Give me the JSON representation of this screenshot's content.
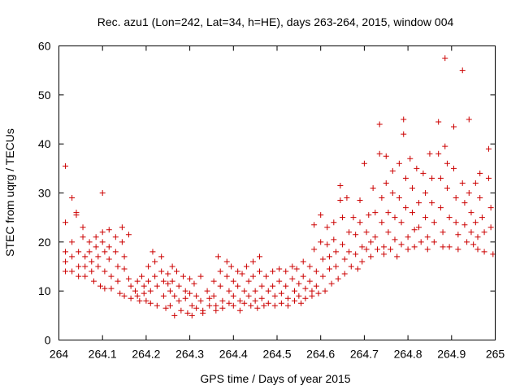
{
  "chart_data": {
    "type": "scatter",
    "title": "Rec. azu1 (Lon=242, Lat=34, h=HE), days 263-264, 2015, window 004",
    "xlabel": "GPS time / Days of year 2015",
    "ylabel": "STEC from uqrg / TECUs",
    "xlim": [
      264,
      265
    ],
    "ylim": [
      0,
      60
    ],
    "xticks": [
      "264",
      "264.1",
      "264.2",
      "264.3",
      "264.4",
      "264.5",
      "264.6",
      "264.7",
      "264.8",
      "264.9",
      "265"
    ],
    "yticks": [
      "0",
      "10",
      "20",
      "30",
      "40",
      "50",
      "60"
    ],
    "grid": false,
    "marker": "+",
    "color": "#cc0000",
    "series": [
      {
        "points": [
          [
            264.015,
            35.5
          ],
          [
            264.015,
            24
          ],
          [
            264.015,
            18
          ],
          [
            264.015,
            16
          ],
          [
            264.015,
            14
          ],
          [
            264.03,
            29
          ],
          [
            264.03,
            20
          ],
          [
            264.03,
            17
          ],
          [
            264.03,
            14
          ],
          [
            264.04,
            26
          ],
          [
            264.04,
            25.5
          ],
          [
            264.045,
            18
          ],
          [
            264.045,
            15
          ],
          [
            264.045,
            13
          ],
          [
            264.055,
            23
          ],
          [
            264.055,
            21
          ],
          [
            264.06,
            17
          ],
          [
            264.06,
            15
          ],
          [
            264.06,
            13
          ],
          [
            264.07,
            20
          ],
          [
            264.07,
            18
          ],
          [
            264.075,
            16
          ],
          [
            264.075,
            14
          ],
          [
            264.08,
            12
          ],
          [
            264.085,
            21
          ],
          [
            264.085,
            19
          ],
          [
            264.09,
            17
          ],
          [
            264.09,
            15
          ],
          [
            264.095,
            11
          ],
          [
            264.1,
            30
          ],
          [
            264.1,
            22
          ],
          [
            264.1,
            20
          ],
          [
            264.105,
            18
          ],
          [
            264.105,
            14
          ],
          [
            264.105,
            10.5
          ],
          [
            264.115,
            22.5
          ],
          [
            264.115,
            19
          ],
          [
            264.115,
            16.5
          ],
          [
            264.12,
            13
          ],
          [
            264.12,
            10.5
          ],
          [
            264.13,
            21
          ],
          [
            264.13,
            18
          ],
          [
            264.135,
            15
          ],
          [
            264.135,
            12
          ],
          [
            264.14,
            9.5
          ],
          [
            264.145,
            23
          ],
          [
            264.145,
            20
          ],
          [
            264.15,
            17
          ],
          [
            264.15,
            14.5
          ],
          [
            264.15,
            9
          ],
          [
            264.16,
            21.5
          ],
          [
            264.16,
            12.5
          ],
          [
            264.165,
            11
          ],
          [
            264.165,
            8.5
          ],
          [
            264.175,
            10
          ],
          [
            264.18,
            12
          ],
          [
            264.18,
            9
          ],
          [
            264.185,
            8
          ],
          [
            264.19,
            13
          ],
          [
            264.195,
            11
          ],
          [
            264.195,
            9.5
          ],
          [
            264.2,
            8
          ],
          [
            264.205,
            15
          ],
          [
            264.205,
            12
          ],
          [
            264.21,
            10
          ],
          [
            264.21,
            7.5
          ],
          [
            264.215,
            18
          ],
          [
            264.22,
            16
          ],
          [
            264.22,
            13
          ],
          [
            264.225,
            11
          ],
          [
            264.225,
            7
          ],
          [
            264.235,
            17
          ],
          [
            264.235,
            14
          ],
          [
            264.24,
            12
          ],
          [
            264.24,
            9
          ],
          [
            264.245,
            6.5
          ],
          [
            264.25,
            13.5
          ],
          [
            264.25,
            11.5
          ],
          [
            264.255,
            10
          ],
          [
            264.255,
            7
          ],
          [
            264.26,
            15
          ],
          [
            264.26,
            12
          ],
          [
            264.265,
            9
          ],
          [
            264.265,
            5
          ],
          [
            264.27,
            14
          ],
          [
            264.275,
            11
          ],
          [
            264.275,
            8
          ],
          [
            264.28,
            6
          ],
          [
            264.285,
            13
          ],
          [
            264.29,
            10
          ],
          [
            264.29,
            8.5
          ],
          [
            264.295,
            5.5
          ],
          [
            264.3,
            12.5
          ],
          [
            264.3,
            9.5
          ],
          [
            264.305,
            7
          ],
          [
            264.305,
            5
          ],
          [
            264.31,
            11.5
          ],
          [
            264.315,
            9
          ],
          [
            264.315,
            6.5
          ],
          [
            264.325,
            13
          ],
          [
            264.325,
            8
          ],
          [
            264.33,
            6
          ],
          [
            264.33,
            5.5
          ],
          [
            264.34,
            10
          ],
          [
            264.345,
            8.5
          ],
          [
            264.345,
            7
          ],
          [
            264.355,
            12
          ],
          [
            264.355,
            9
          ],
          [
            264.36,
            7
          ],
          [
            264.36,
            6
          ],
          [
            264.365,
            17
          ],
          [
            264.37,
            14
          ],
          [
            264.37,
            11
          ],
          [
            264.375,
            8
          ],
          [
            264.375,
            6.5
          ],
          [
            264.385,
            16
          ],
          [
            264.385,
            13
          ],
          [
            264.39,
            10
          ],
          [
            264.39,
            7.5
          ],
          [
            264.395,
            15
          ],
          [
            264.4,
            12
          ],
          [
            264.4,
            9
          ],
          [
            264.4,
            7
          ],
          [
            264.41,
            14
          ],
          [
            264.41,
            11
          ],
          [
            264.415,
            8
          ],
          [
            264.415,
            6
          ],
          [
            264.42,
            13.5
          ],
          [
            264.425,
            10
          ],
          [
            264.425,
            7.5
          ],
          [
            264.43,
            15
          ],
          [
            264.435,
            12
          ],
          [
            264.435,
            9
          ],
          [
            264.44,
            7
          ],
          [
            264.445,
            16
          ],
          [
            264.445,
            13
          ],
          [
            264.45,
            10
          ],
          [
            264.45,
            8
          ],
          [
            264.455,
            6.5
          ],
          [
            264.46,
            17
          ],
          [
            264.46,
            14
          ],
          [
            264.465,
            11
          ],
          [
            264.465,
            8.5
          ],
          [
            264.47,
            7
          ],
          [
            264.475,
            13
          ],
          [
            264.48,
            10
          ],
          [
            264.48,
            7.5
          ],
          [
            264.49,
            14
          ],
          [
            264.49,
            11
          ],
          [
            264.495,
            9
          ],
          [
            264.495,
            7
          ],
          [
            264.505,
            14.5
          ],
          [
            264.505,
            12
          ],
          [
            264.51,
            9.5
          ],
          [
            264.51,
            7.5
          ],
          [
            264.52,
            14
          ],
          [
            264.52,
            11
          ],
          [
            264.525,
            8.5
          ],
          [
            264.525,
            7
          ],
          [
            264.535,
            15
          ],
          [
            264.535,
            12.5
          ],
          [
            264.54,
            10
          ],
          [
            264.54,
            8
          ],
          [
            264.545,
            14.5
          ],
          [
            264.55,
            11.5
          ],
          [
            264.55,
            9
          ],
          [
            264.555,
            7.5
          ],
          [
            264.56,
            16
          ],
          [
            264.56,
            13
          ],
          [
            264.565,
            10.5
          ],
          [
            264.565,
            8.5
          ],
          [
            264.575,
            15
          ],
          [
            264.575,
            12
          ],
          [
            264.58,
            10
          ],
          [
            264.58,
            9
          ],
          [
            264.585,
            23.5
          ],
          [
            264.585,
            18.5
          ],
          [
            264.59,
            14
          ],
          [
            264.59,
            11
          ],
          [
            264.595,
            9.5
          ],
          [
            264.6,
            25.5
          ],
          [
            264.6,
            20
          ],
          [
            264.605,
            16.5
          ],
          [
            264.605,
            13
          ],
          [
            264.61,
            10
          ],
          [
            264.615,
            23
          ],
          [
            264.615,
            19.5
          ],
          [
            264.62,
            17
          ],
          [
            264.62,
            14.5
          ],
          [
            264.625,
            11.5
          ],
          [
            264.63,
            24
          ],
          [
            264.63,
            20.5
          ],
          [
            264.635,
            18
          ],
          [
            264.635,
            15
          ],
          [
            264.64,
            12.5
          ],
          [
            264.645,
            31.5
          ],
          [
            264.645,
            28.5
          ],
          [
            264.65,
            25
          ],
          [
            264.65,
            19.5
          ],
          [
            264.655,
            16.5
          ],
          [
            264.655,
            13.5
          ],
          [
            264.66,
            29
          ],
          [
            264.665,
            22
          ],
          [
            264.665,
            18
          ],
          [
            264.67,
            15
          ],
          [
            264.675,
            25
          ],
          [
            264.68,
            21.5
          ],
          [
            264.68,
            17.5
          ],
          [
            264.685,
            14.5
          ],
          [
            264.69,
            28.5
          ],
          [
            264.69,
            24
          ],
          [
            264.695,
            19
          ],
          [
            264.695,
            16
          ],
          [
            264.7,
            36
          ],
          [
            264.705,
            22
          ],
          [
            264.705,
            18.5
          ],
          [
            264.71,
            25.5
          ],
          [
            264.715,
            20
          ],
          [
            264.715,
            17
          ],
          [
            264.72,
            31
          ],
          [
            264.725,
            26
          ],
          [
            264.725,
            21
          ],
          [
            264.73,
            18.5
          ],
          [
            264.735,
            44
          ],
          [
            264.735,
            38
          ],
          [
            264.74,
            29
          ],
          [
            264.74,
            24
          ],
          [
            264.745,
            19
          ],
          [
            264.745,
            17.5
          ],
          [
            264.75,
            37.5
          ],
          [
            264.75,
            32
          ],
          [
            264.755,
            26
          ],
          [
            264.755,
            22
          ],
          [
            264.76,
            18.5
          ],
          [
            264.765,
            34.5
          ],
          [
            264.765,
            30
          ],
          [
            264.77,
            25
          ],
          [
            264.77,
            20.5
          ],
          [
            264.775,
            17
          ],
          [
            264.78,
            36
          ],
          [
            264.78,
            29
          ],
          [
            264.785,
            24
          ],
          [
            264.785,
            19.5
          ],
          [
            264.79,
            45
          ],
          [
            264.79,
            42
          ],
          [
            264.795,
            33
          ],
          [
            264.795,
            27
          ],
          [
            264.8,
            21
          ],
          [
            264.8,
            18.5
          ],
          [
            264.805,
            37
          ],
          [
            264.81,
            31
          ],
          [
            264.81,
            26
          ],
          [
            264.815,
            22.5
          ],
          [
            264.815,
            19
          ],
          [
            264.82,
            35
          ],
          [
            264.825,
            28
          ],
          [
            264.825,
            23
          ],
          [
            264.83,
            20
          ],
          [
            264.835,
            34
          ],
          [
            264.84,
            30
          ],
          [
            264.84,
            25
          ],
          [
            264.845,
            21
          ],
          [
            264.845,
            18.5
          ],
          [
            264.85,
            38
          ],
          [
            264.855,
            33
          ],
          [
            264.855,
            28
          ],
          [
            264.86,
            24
          ],
          [
            264.86,
            20
          ],
          [
            264.87,
            44.5
          ],
          [
            264.87,
            38
          ],
          [
            264.875,
            33
          ],
          [
            264.875,
            27
          ],
          [
            264.88,
            22
          ],
          [
            264.88,
            19
          ],
          [
            264.885,
            57.5
          ],
          [
            264.885,
            39.5
          ],
          [
            264.89,
            36
          ],
          [
            264.89,
            31
          ],
          [
            264.895,
            25
          ],
          [
            264.895,
            19
          ],
          [
            264.905,
            43.5
          ],
          [
            264.905,
            35
          ],
          [
            264.91,
            29
          ],
          [
            264.91,
            24
          ],
          [
            264.915,
            21.5
          ],
          [
            264.915,
            18.5
          ],
          [
            264.925,
            55
          ],
          [
            264.925,
            32
          ],
          [
            264.93,
            28
          ],
          [
            264.93,
            23.5
          ],
          [
            264.935,
            20
          ],
          [
            264.94,
            45
          ],
          [
            264.94,
            30
          ],
          [
            264.945,
            26
          ],
          [
            264.945,
            22
          ],
          [
            264.95,
            19.5
          ],
          [
            264.955,
            32
          ],
          [
            264.955,
            24
          ],
          [
            264.96,
            21
          ],
          [
            264.96,
            18.5
          ],
          [
            264.965,
            34
          ],
          [
            264.965,
            29
          ],
          [
            264.97,
            25
          ],
          [
            264.975,
            22
          ],
          [
            264.975,
            18
          ],
          [
            264.985,
            39
          ],
          [
            264.985,
            33
          ],
          [
            264.99,
            27
          ],
          [
            264.99,
            23
          ],
          [
            264.995,
            17.5
          ]
        ]
      }
    ]
  }
}
